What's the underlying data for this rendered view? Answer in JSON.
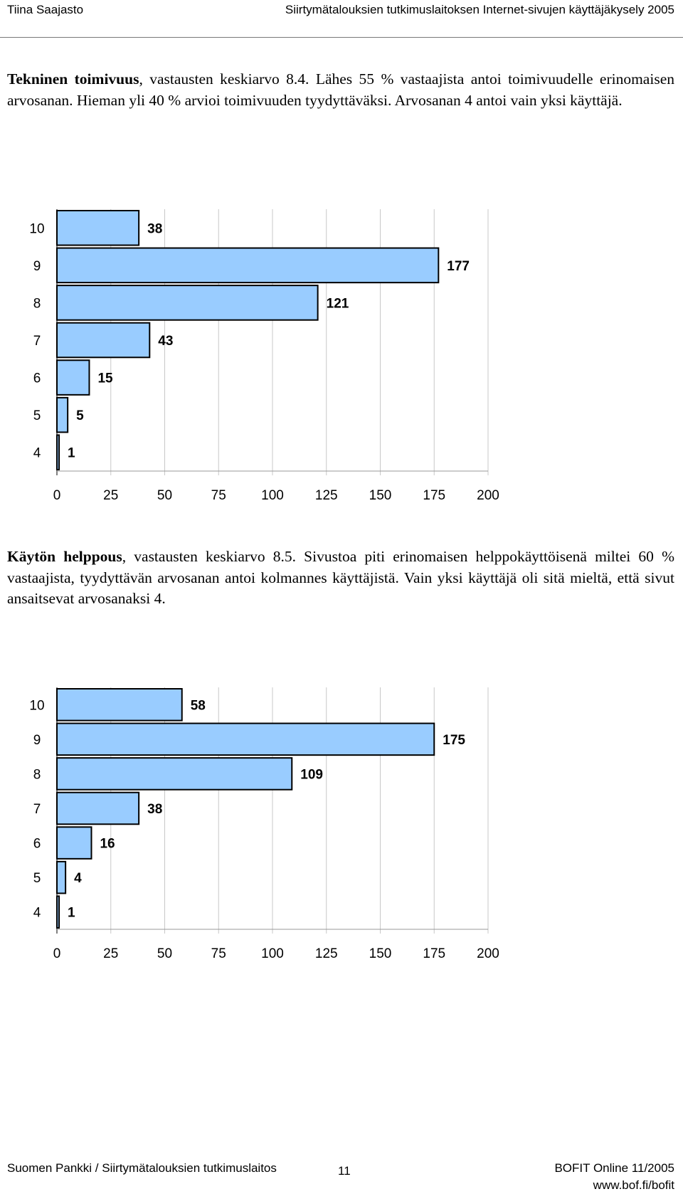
{
  "header": {
    "author": "Tiina Saajasto",
    "title": "Siirtymätalouksien tutkimuslaitoksen Internet-sivujen käyttäjäkysely 2005"
  },
  "section1": {
    "bold": "Tekninen toimivuus",
    "text": ", vastausten keskiarvo 8.4. Lähes 55 % vastaajista antoi toimivuudelle erinomaisen arvosanan. Hieman yli 40 % arvioi toimivuuden tyydyttäväksi. Arvosanan 4 antoi vain yksi käyttäjä."
  },
  "section2": {
    "bold": "Käytön helppous",
    "text": ", vastausten keskiarvo 8.5. Sivustoa piti erinomaisen helppokäyttöisenä miltei 60 % vastaajista, tyydyttävän arvosanan antoi kolmannes käyttäjistä. Vain yksi käyttäjä oli sitä mieltä, että sivut ansaitsevat arvosanaksi 4."
  },
  "colors": {
    "bar_fill": "#99ccff",
    "bar_stroke": "#000000",
    "grid": "#c8c8c8"
  },
  "chart_data": [
    {
      "type": "bar",
      "orientation": "horizontal",
      "categories": [
        "10",
        "9",
        "8",
        "7",
        "6",
        "5",
        "4"
      ],
      "values": [
        38,
        177,
        121,
        43,
        15,
        5,
        1
      ],
      "xlim": [
        0,
        200
      ],
      "xticks": [
        "0",
        "25",
        "50",
        "75",
        "100",
        "125",
        "150",
        "175",
        "200"
      ],
      "grid": true
    },
    {
      "type": "bar",
      "orientation": "horizontal",
      "categories": [
        "10",
        "9",
        "8",
        "7",
        "6",
        "5",
        "4"
      ],
      "values": [
        58,
        175,
        109,
        38,
        16,
        4,
        1
      ],
      "xlim": [
        0,
        200
      ],
      "xticks": [
        "0",
        "25",
        "50",
        "75",
        "100",
        "125",
        "150",
        "175",
        "200"
      ],
      "grid": true
    }
  ],
  "footer": {
    "left": "Suomen Pankki / Siirtymätalouksien tutkimuslaitos",
    "page": "11",
    "right1": "BOFIT Online 11/2005",
    "right2": "www.bof.fi/bofit"
  }
}
